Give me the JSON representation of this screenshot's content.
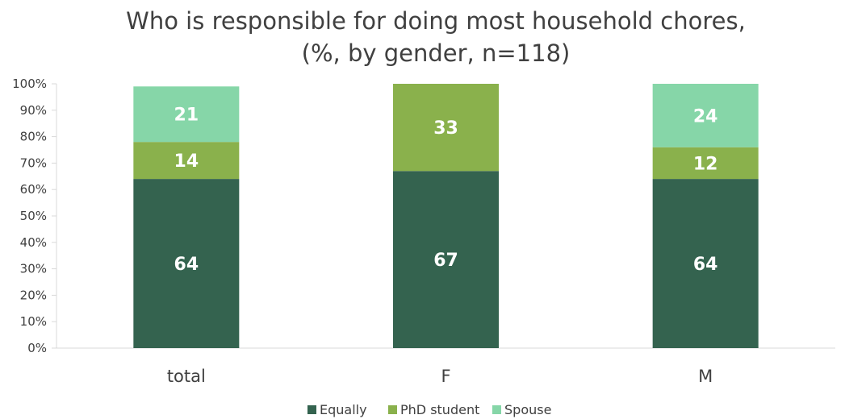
{
  "chart_data": {
    "type": "bar",
    "stacked": true,
    "title_lines": [
      "Who is responsible for doing most household chores,",
      "(%, by gender, n=118)"
    ],
    "categories": [
      "total",
      "F",
      "M"
    ],
    "ylim": [
      0,
      100
    ],
    "yticks": [
      "0%",
      "10%",
      "20%",
      "30%",
      "40%",
      "50%",
      "60%",
      "70%",
      "80%",
      "90%",
      "100%"
    ],
    "legend_position": "bottom",
    "grid": false,
    "series": [
      {
        "name": "Equally",
        "color": "#34634F",
        "values": [
          64,
          67,
          64
        ],
        "labels": [
          "64",
          "67",
          "64"
        ]
      },
      {
        "name": "PhD student",
        "color": "#8AB14C",
        "values": [
          14,
          33,
          12
        ],
        "labels": [
          "14",
          "33",
          "12"
        ]
      },
      {
        "name": "Spouse",
        "color": "#86D6A8",
        "values": [
          21,
          0,
          24
        ],
        "labels": [
          "21",
          "",
          "24"
        ]
      }
    ]
  }
}
